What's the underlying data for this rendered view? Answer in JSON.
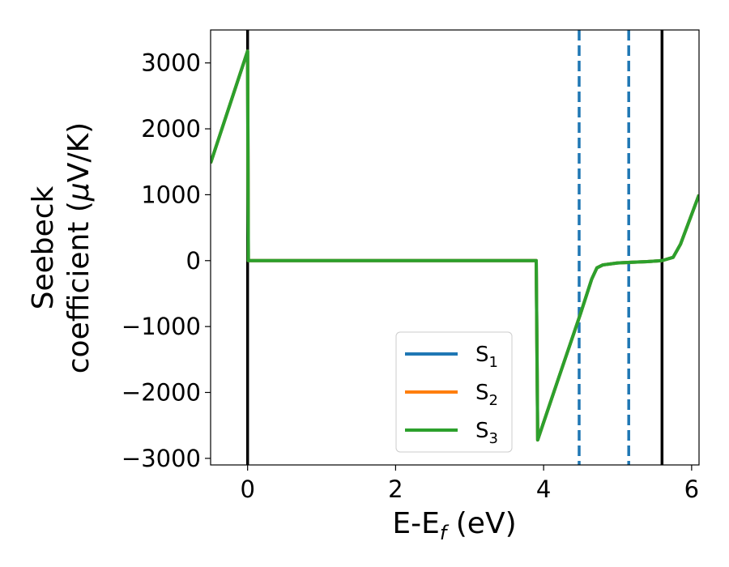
{
  "chart_data": {
    "type": "line",
    "xlabel": {
      "main": "E-E",
      "sub": "f",
      "unit": " (eV)"
    },
    "ylabel": {
      "line1": "Seebeck",
      "line2": "coefficient  (",
      "mu": "μ",
      "unit": "V/K)"
    },
    "xlim": [
      -0.5,
      6.1
    ],
    "ylim": [
      -3100,
      3500
    ],
    "xticks": [
      0,
      2,
      4,
      6
    ],
    "xtick_labels": [
      "0",
      "2",
      "4",
      "6"
    ],
    "yticks": [
      3000,
      2000,
      1000,
      0,
      -1000,
      -2000,
      -3000
    ],
    "ytick_labels": [
      "3000",
      "2000",
      "1000",
      "0",
      "−1000",
      "−2000",
      "−3000"
    ],
    "grid": false,
    "legend_position": "lower-center",
    "series": [
      {
        "name": "S1",
        "label_main": "S",
        "label_sub": "1",
        "color": "#1f77b4",
        "x": [
          -0.5,
          0.0,
          0.01,
          0.5,
          1.0,
          2.0,
          3.0,
          3.9,
          3.92,
          4.2,
          4.5,
          4.65,
          4.72,
          4.8,
          5.0,
          5.2,
          5.4,
          5.6,
          5.75,
          5.85,
          6.1
        ],
        "y": [
          1480,
          3180,
          0,
          0,
          0,
          0,
          0,
          0,
          -2720,
          -1790,
          -800,
          -280,
          -110,
          -65,
          -35,
          -25,
          -15,
          0,
          50,
          250,
          1000
        ]
      },
      {
        "name": "S2",
        "label_main": "S",
        "label_sub": "2",
        "color": "#ff7f0e",
        "x": [
          -0.5,
          0.0,
          0.01,
          0.5,
          1.0,
          2.0,
          3.0,
          3.9,
          3.92,
          4.2,
          4.5,
          4.65,
          4.72,
          4.8,
          5.0,
          5.2,
          5.4,
          5.6,
          5.75,
          5.85,
          6.1
        ],
        "y": [
          1480,
          3180,
          0,
          0,
          0,
          0,
          0,
          0,
          -2720,
          -1790,
          -800,
          -280,
          -110,
          -65,
          -35,
          -25,
          -15,
          0,
          50,
          250,
          1000
        ]
      },
      {
        "name": "S3",
        "label_main": "S",
        "label_sub": "3",
        "color": "#2ca02c",
        "x": [
          -0.5,
          0.0,
          0.01,
          0.5,
          1.0,
          2.0,
          3.0,
          3.9,
          3.92,
          4.2,
          4.5,
          4.65,
          4.72,
          4.8,
          5.0,
          5.2,
          5.4,
          5.6,
          5.75,
          5.85,
          6.1
        ],
        "y": [
          1480,
          3180,
          0,
          0,
          0,
          0,
          0,
          0,
          -2720,
          -1790,
          -800,
          -280,
          -110,
          -65,
          -35,
          -25,
          -15,
          0,
          50,
          250,
          1000
        ]
      }
    ],
    "vlines": [
      {
        "x": 0.0,
        "style": "solid",
        "color": "#000000"
      },
      {
        "x": 5.6,
        "style": "solid",
        "color": "#000000"
      },
      {
        "x": 4.48,
        "style": "dashed",
        "color": "#1f77b4"
      },
      {
        "x": 5.15,
        "style": "dashed",
        "color": "#1f77b4"
      }
    ]
  }
}
